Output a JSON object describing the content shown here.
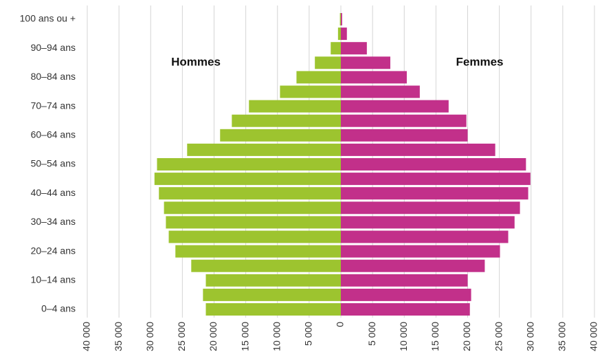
{
  "chart_data": {
    "type": "pyramid",
    "categories": [
      "0–4 ans",
      null,
      "10–14 ans",
      null,
      "20–24 ans",
      null,
      "30–34 ans",
      null,
      "40–44 ans",
      null,
      "50–54 ans",
      null,
      "60–64 ans",
      null,
      "70–74 ans",
      null,
      "80–84 ans",
      null,
      "90–94 ans",
      null,
      "100 ans ou +"
    ],
    "series": [
      {
        "name": "Hommes",
        "color": "#9dc42f",
        "values": [
          21300,
          21750,
          21300,
          23600,
          26100,
          27150,
          27600,
          27900,
          28700,
          29400,
          29000,
          24250,
          19050,
          17200,
          14500,
          9600,
          7000,
          4100,
          1600,
          450,
          150
        ]
      },
      {
        "name": "Femmes",
        "color": "#c2308a",
        "values": [
          20350,
          20550,
          20000,
          22700,
          25100,
          26400,
          27400,
          28250,
          29550,
          29900,
          29200,
          24350,
          20000,
          19800,
          17000,
          12450,
          10400,
          7800,
          4100,
          950,
          200
        ]
      }
    ],
    "xlim": [
      -40000,
      40000
    ],
    "xticks": [
      {
        "value": -40000,
        "label": "40 000"
      },
      {
        "value": -35000,
        "label": "35 000"
      },
      {
        "value": -30000,
        "label": "30 000"
      },
      {
        "value": -25000,
        "label": "25 000"
      },
      {
        "value": -20000,
        "label": "20 000"
      },
      {
        "value": -15000,
        "label": "15 000"
      },
      {
        "value": -10000,
        "label": "10 000"
      },
      {
        "value": -5000,
        "label": "5 000"
      },
      0,
      {
        "value": 5000,
        "label": "5 000"
      },
      {
        "value": 10000,
        "label": "10 000"
      },
      {
        "value": 15000,
        "label": "15 000"
      },
      {
        "value": 20000,
        "label": "20 000"
      },
      {
        "value": 25000,
        "label": "25 000"
      },
      {
        "value": 30000,
        "label": "30 000"
      },
      {
        "value": 35000,
        "label": "35 000"
      },
      {
        "value": 40000,
        "label": "40 000"
      }
    ],
    "grid": true
  }
}
